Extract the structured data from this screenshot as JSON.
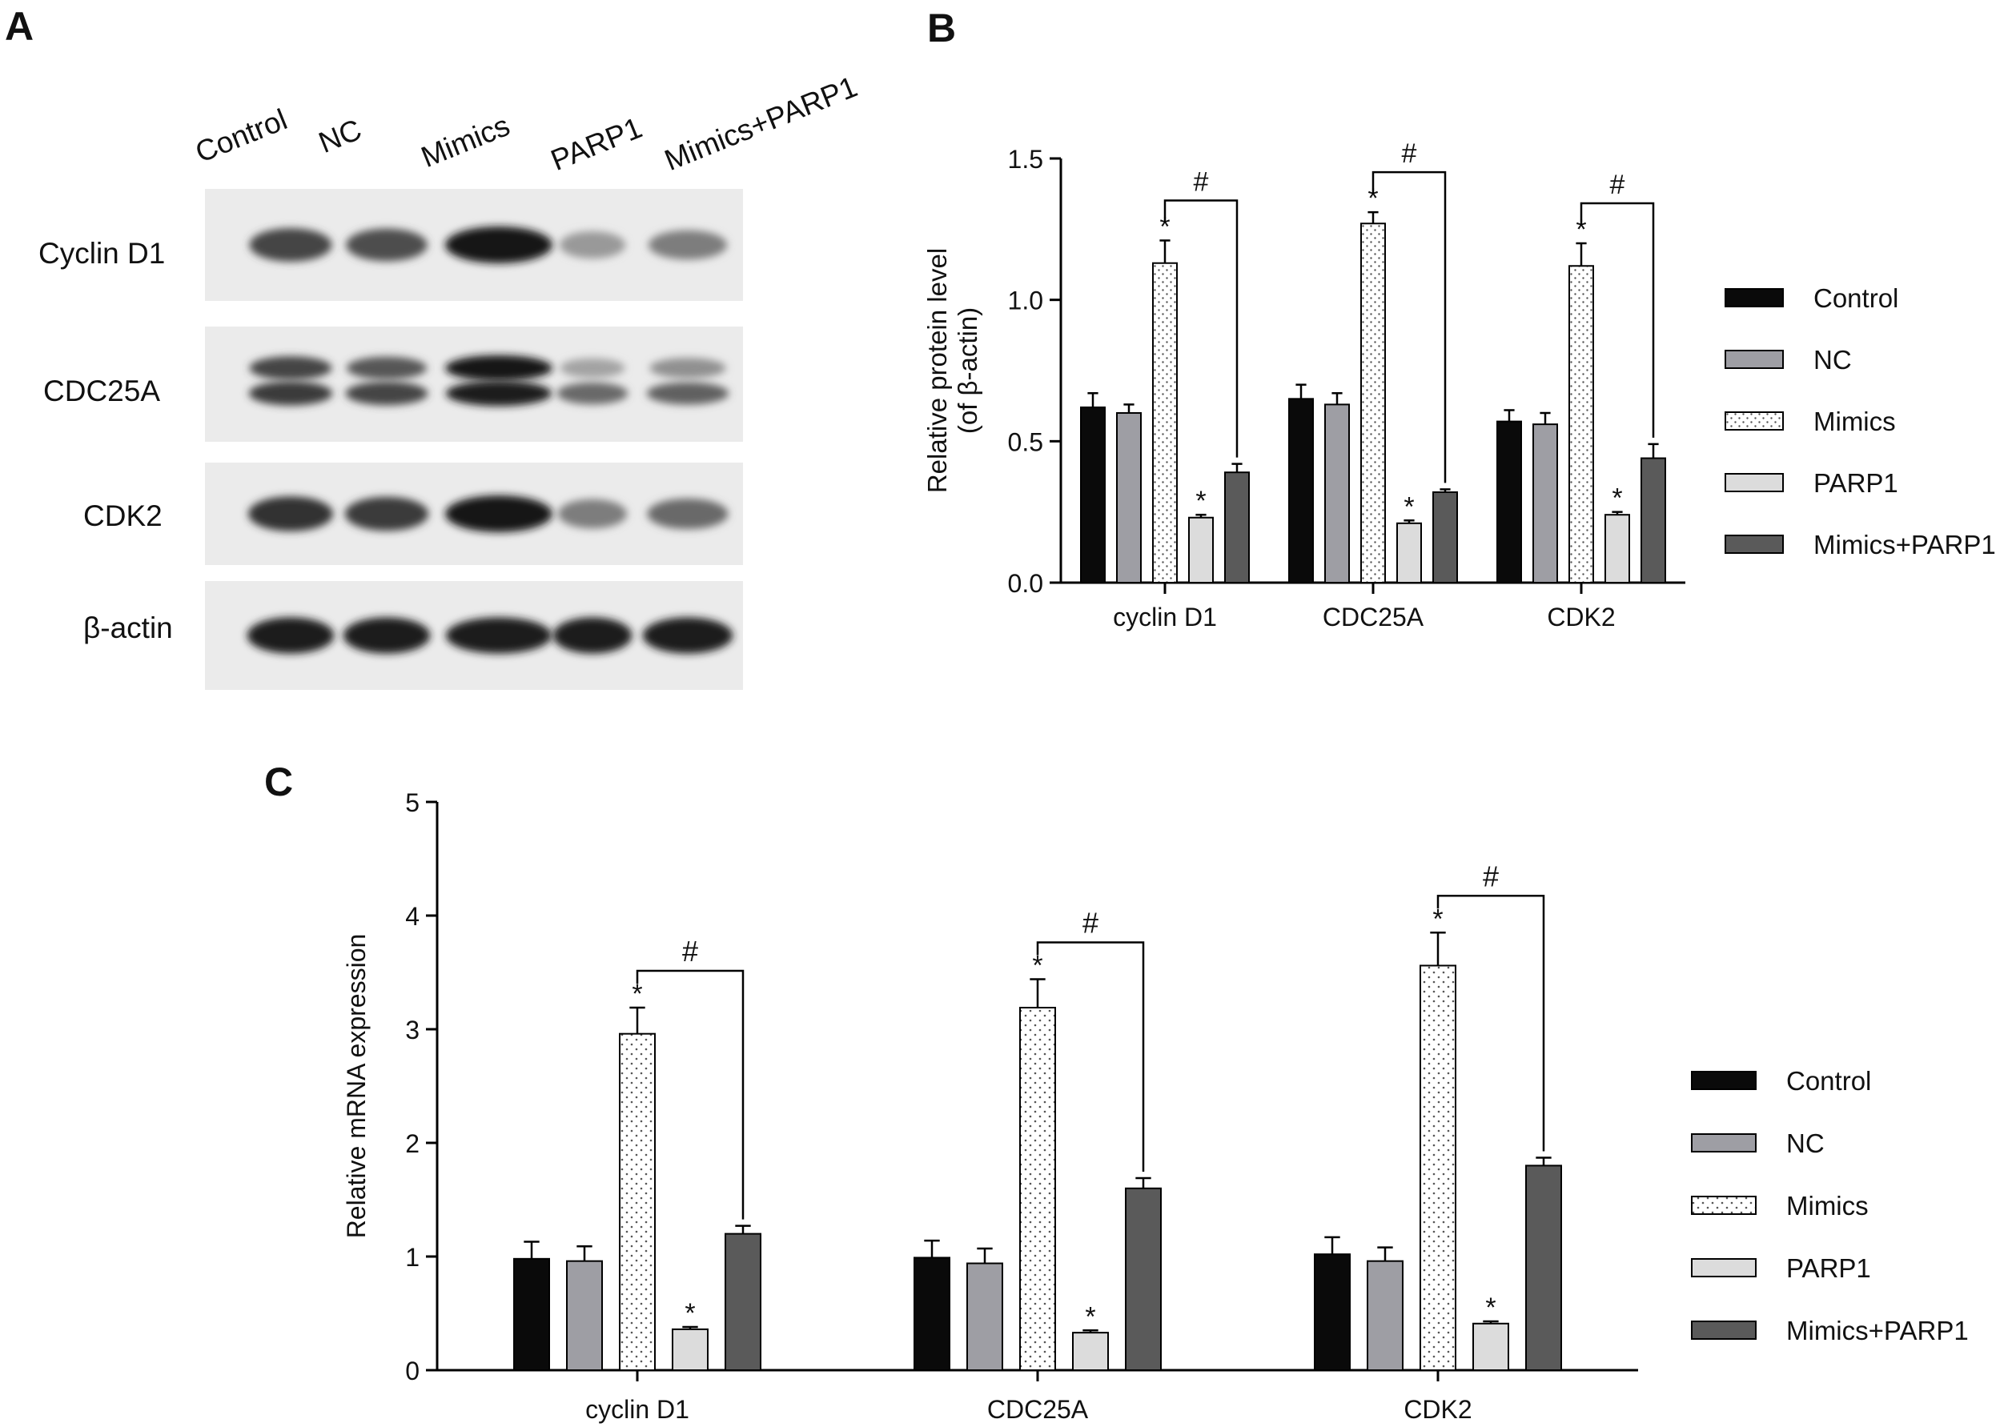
{
  "panels": {
    "a": "A",
    "b": "B",
    "c": "C"
  },
  "western_blot": {
    "lanes": [
      "Control",
      "NC",
      "Mimics",
      "PARP1",
      "Mimics+PARP1"
    ],
    "rows": [
      {
        "label": "Cyclin D1",
        "bands": [
          [
            0.75
          ],
          [
            0.7
          ],
          [
            1.0
          ],
          [
            0.3
          ],
          [
            0.45
          ]
        ]
      },
      {
        "label": "CDC25A",
        "bands": [
          [
            0.75,
            0.8
          ],
          [
            0.65,
            0.75
          ],
          [
            1.0,
            0.95
          ],
          [
            0.25,
            0.55
          ],
          [
            0.35,
            0.6
          ]
        ]
      },
      {
        "label": "CDK2",
        "bands": [
          [
            0.85
          ],
          [
            0.8
          ],
          [
            1.0
          ],
          [
            0.45
          ],
          [
            0.55
          ]
        ]
      },
      {
        "label": "β-actin",
        "bands": [
          [
            0.95
          ],
          [
            0.95
          ],
          [
            0.95
          ],
          [
            0.95
          ],
          [
            0.95
          ]
        ]
      }
    ]
  },
  "legend": {
    "entries": [
      {
        "name": "Control",
        "color": "#0a0a0a",
        "pattern": "solid"
      },
      {
        "name": "NC",
        "color": "#9e9ea4",
        "pattern": "solid"
      },
      {
        "name": "Mimics",
        "color": "#ffffff",
        "pattern": "dots"
      },
      {
        "name": "PARP1",
        "color": "#dcdcdc",
        "pattern": "solid"
      },
      {
        "name": "Mimics+PARP1",
        "color": "#5a5a5a",
        "pattern": "solid"
      }
    ]
  },
  "chart_data": [
    {
      "type": "bar",
      "panel": "B",
      "ylabel": "Relative protein level\n(of β-actin)",
      "xlabel": "",
      "ylim": [
        0,
        1.5
      ],
      "yticks": [
        "0.0",
        "0.5",
        "1.0",
        "1.5"
      ],
      "categories": [
        "cyclin D1",
        "CDC25A",
        "CDK2"
      ],
      "series": [
        {
          "name": "Control",
          "values": [
            0.62,
            0.65,
            0.57
          ],
          "errors": [
            0.05,
            0.05,
            0.04
          ]
        },
        {
          "name": "NC",
          "values": [
            0.6,
            0.63,
            0.56
          ],
          "errors": [
            0.03,
            0.04,
            0.04
          ]
        },
        {
          "name": "Mimics",
          "values": [
            1.13,
            1.27,
            1.12
          ],
          "errors": [
            0.08,
            0.04,
            0.08
          ]
        },
        {
          "name": "PARP1",
          "values": [
            0.23,
            0.21,
            0.24
          ],
          "errors": [
            0.01,
            0.01,
            0.01
          ]
        },
        {
          "name": "Mimics+PARP1",
          "values": [
            0.39,
            0.32,
            0.44
          ],
          "errors": [
            0.03,
            0.01,
            0.05
          ]
        }
      ],
      "star_marker": "*",
      "hash_marker": "#",
      "legend_position": "right"
    },
    {
      "type": "bar",
      "panel": "C",
      "ylabel": "Relative mRNA expression",
      "xlabel": "",
      "ylim": [
        0,
        5
      ],
      "yticks": [
        "0",
        "1",
        "2",
        "3",
        "4",
        "5"
      ],
      "categories": [
        "cyclin D1",
        "CDC25A",
        "CDK2"
      ],
      "series": [
        {
          "name": "Control",
          "values": [
            0.98,
            0.99,
            1.02
          ],
          "errors": [
            0.15,
            0.15,
            0.15
          ]
        },
        {
          "name": "NC",
          "values": [
            0.96,
            0.94,
            0.96
          ],
          "errors": [
            0.13,
            0.13,
            0.12
          ]
        },
        {
          "name": "Mimics",
          "values": [
            2.96,
            3.19,
            3.56
          ],
          "errors": [
            0.23,
            0.25,
            0.29
          ]
        },
        {
          "name": "PARP1",
          "values": [
            0.36,
            0.33,
            0.41
          ],
          "errors": [
            0.02,
            0.02,
            0.02
          ]
        },
        {
          "name": "Mimics+PARP1",
          "values": [
            1.2,
            1.6,
            1.8
          ],
          "errors": [
            0.07,
            0.09,
            0.07
          ]
        }
      ],
      "star_marker": "*",
      "hash_marker": "#",
      "legend_position": "right"
    }
  ]
}
